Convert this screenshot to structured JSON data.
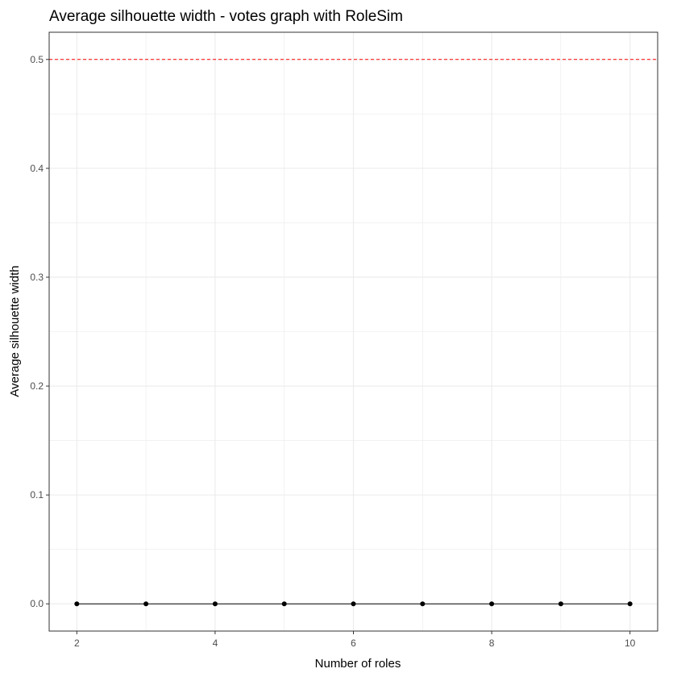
{
  "chart_data": {
    "type": "line",
    "title": "Average silhouette width - votes graph with RoleSim",
    "xlabel": "Number of roles",
    "ylabel": "Average silhouette width",
    "x": [
      2,
      3,
      4,
      5,
      6,
      7,
      8,
      9,
      10
    ],
    "series": [
      {
        "values": [
          0,
          0,
          0,
          0,
          0,
          0,
          0,
          0,
          0
        ]
      }
    ],
    "xlim": [
      1.6,
      10.4
    ],
    "ylim": [
      -0.025,
      0.525
    ],
    "xticks": [
      2,
      4,
      6,
      8,
      10
    ],
    "yticks": [
      0.0,
      0.1,
      0.2,
      0.3,
      0.4,
      0.5
    ],
    "xtick_labels": [
      "2",
      "4",
      "6",
      "8",
      "10"
    ],
    "ytick_labels": [
      "0.0",
      "0.1",
      "0.2",
      "0.3",
      "0.4",
      "0.5"
    ],
    "reference_line": {
      "y": 0.5,
      "style": "dashed",
      "color": "#ff0000"
    },
    "line_color": "#000000",
    "point_color": "#000000",
    "grid": true,
    "grid_color": "#ebebeb",
    "panel_border_color": "#333333",
    "tick_label_color": "#4d4d4d"
  }
}
